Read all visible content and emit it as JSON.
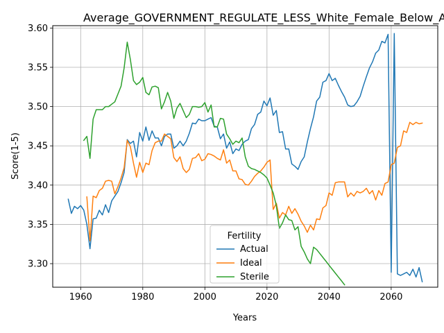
{
  "chart_data": {
    "type": "line",
    "title": "Average_GOVERNMENT_REGULATE_LESS_White_Female_Below_Average_",
    "xlabel": "Years",
    "ylabel": "Score(1-5)",
    "xlim": [
      1951,
      2075
    ],
    "ylim": [
      3.27,
      3.603
    ],
    "x_ticks": [
      1960,
      1980,
      2000,
      2020,
      2040,
      2060
    ],
    "y_ticks": [
      3.3,
      3.35,
      3.4,
      3.45,
      3.5,
      3.55,
      3.6
    ],
    "x_tick_labels": [
      "1960",
      "1980",
      "2000",
      "2020",
      "2040",
      "2060"
    ],
    "y_tick_labels": [
      "3.30",
      "3.35",
      "3.40",
      "3.45",
      "3.50",
      "3.55",
      "3.60"
    ],
    "grid": true,
    "legend": {
      "title": "Fertility",
      "placement": "lower-center"
    },
    "series": [
      {
        "name": "Actual",
        "color": "#1f77b4",
        "points": [
          [
            1956,
            3.382
          ],
          [
            1957,
            3.364
          ],
          [
            1958,
            3.373
          ],
          [
            1959,
            3.37
          ],
          [
            1960,
            3.374
          ],
          [
            1961,
            3.368
          ],
          [
            1962,
            3.35
          ],
          [
            1963,
            3.319
          ],
          [
            1964,
            3.357
          ],
          [
            1965,
            3.358
          ],
          [
            1966,
            3.368
          ],
          [
            1967,
            3.362
          ],
          [
            1968,
            3.375
          ],
          [
            1969,
            3.365
          ],
          [
            1970,
            3.38
          ],
          [
            1971,
            3.386
          ],
          [
            1972,
            3.392
          ],
          [
            1973,
            3.403
          ],
          [
            1974,
            3.416
          ],
          [
            1975,
            3.458
          ],
          [
            1976,
            3.453
          ],
          [
            1977,
            3.456
          ],
          [
            1978,
            3.436
          ],
          [
            1979,
            3.467
          ],
          [
            1980,
            3.456
          ],
          [
            1981,
            3.474
          ],
          [
            1982,
            3.457
          ],
          [
            1983,
            3.469
          ],
          [
            1984,
            3.46
          ],
          [
            1985,
            3.46
          ],
          [
            1986,
            3.45
          ],
          [
            1987,
            3.462
          ],
          [
            1988,
            3.465
          ],
          [
            1989,
            3.465
          ],
          [
            1990,
            3.447
          ],
          [
            1991,
            3.45
          ],
          [
            1992,
            3.456
          ],
          [
            1993,
            3.45
          ],
          [
            1994,
            3.456
          ],
          [
            1995,
            3.466
          ],
          [
            1996,
            3.479
          ],
          [
            1997,
            3.478
          ],
          [
            1998,
            3.484
          ],
          [
            1999,
            3.482
          ],
          [
            2000,
            3.482
          ],
          [
            2001,
            3.484
          ],
          [
            2002,
            3.486
          ],
          [
            2003,
            3.475
          ],
          [
            2004,
            3.474
          ],
          [
            2005,
            3.459
          ],
          [
            2006,
            3.465
          ],
          [
            2007,
            3.447
          ],
          [
            2008,
            3.455
          ],
          [
            2009,
            3.44
          ],
          [
            2010,
            3.446
          ],
          [
            2011,
            3.444
          ],
          [
            2012,
            3.452
          ],
          [
            2013,
            3.456
          ],
          [
            2014,
            3.458
          ],
          [
            2015,
            3.472
          ],
          [
            2016,
            3.477
          ],
          [
            2017,
            3.49
          ],
          [
            2018,
            3.493
          ],
          [
            2019,
            3.507
          ],
          [
            2020,
            3.501
          ],
          [
            2021,
            3.511
          ],
          [
            2022,
            3.489
          ],
          [
            2023,
            3.495
          ],
          [
            2024,
            3.467
          ],
          [
            2025,
            3.468
          ],
          [
            2026,
            3.446
          ],
          [
            2027,
            3.446
          ],
          [
            2028,
            3.427
          ],
          [
            2029,
            3.424
          ],
          [
            2030,
            3.42
          ],
          [
            2031,
            3.43
          ],
          [
            2032,
            3.436
          ],
          [
            2033,
            3.455
          ],
          [
            2034,
            3.472
          ],
          [
            2035,
            3.487
          ],
          [
            2036,
            3.507
          ],
          [
            2037,
            3.512
          ],
          [
            2038,
            3.531
          ],
          [
            2039,
            3.533
          ],
          [
            2040,
            3.542
          ],
          [
            2041,
            3.533
          ],
          [
            2042,
            3.536
          ],
          [
            2043,
            3.527
          ],
          [
            2044,
            3.519
          ],
          [
            2045,
            3.512
          ],
          [
            2046,
            3.502
          ],
          [
            2047,
            3.5
          ],
          [
            2048,
            3.501
          ],
          [
            2049,
            3.506
          ],
          [
            2050,
            3.513
          ],
          [
            2051,
            3.526
          ],
          [
            2052,
            3.538
          ],
          [
            2053,
            3.549
          ],
          [
            2054,
            3.557
          ],
          [
            2055,
            3.568
          ],
          [
            2056,
            3.572
          ],
          [
            2057,
            3.583
          ],
          [
            2058,
            3.581
          ],
          [
            2059,
            3.592
          ],
          [
            2060,
            3.289
          ],
          [
            2061,
            3.593
          ],
          [
            2062,
            3.287
          ],
          [
            2063,
            3.285
          ],
          [
            2064,
            3.287
          ],
          [
            2065,
            3.289
          ],
          [
            2066,
            3.285
          ],
          [
            2067,
            3.293
          ],
          [
            2068,
            3.283
          ],
          [
            2069,
            3.295
          ],
          [
            2070,
            3.277
          ]
        ]
      },
      {
        "name": "Ideal",
        "color": "#ff7f0e",
        "points": [
          [
            1962,
            3.385
          ],
          [
            1963,
            3.329
          ],
          [
            1964,
            3.386
          ],
          [
            1965,
            3.384
          ],
          [
            1966,
            3.393
          ],
          [
            1967,
            3.396
          ],
          [
            1968,
            3.405
          ],
          [
            1969,
            3.406
          ],
          [
            1970,
            3.405
          ],
          [
            1971,
            3.389
          ],
          [
            1972,
            3.398
          ],
          [
            1973,
            3.409
          ],
          [
            1974,
            3.422
          ],
          [
            1975,
            3.457
          ],
          [
            1976,
            3.449
          ],
          [
            1977,
            3.428
          ],
          [
            1978,
            3.41
          ],
          [
            1979,
            3.429
          ],
          [
            1980,
            3.416
          ],
          [
            1981,
            3.428
          ],
          [
            1982,
            3.426
          ],
          [
            1983,
            3.444
          ],
          [
            1984,
            3.454
          ],
          [
            1985,
            3.456
          ],
          [
            1986,
            3.456
          ],
          [
            1987,
            3.465
          ],
          [
            1988,
            3.462
          ],
          [
            1989,
            3.459
          ],
          [
            1990,
            3.435
          ],
          [
            1991,
            3.43
          ],
          [
            1992,
            3.436
          ],
          [
            1993,
            3.421
          ],
          [
            1994,
            3.416
          ],
          [
            1995,
            3.42
          ],
          [
            1996,
            3.434
          ],
          [
            1997,
            3.435
          ],
          [
            1998,
            3.44
          ],
          [
            1999,
            3.431
          ],
          [
            2000,
            3.433
          ],
          [
            2001,
            3.44
          ],
          [
            2002,
            3.439
          ],
          [
            2003,
            3.437
          ],
          [
            2004,
            3.434
          ],
          [
            2005,
            3.432
          ],
          [
            2006,
            3.445
          ],
          [
            2007,
            3.428
          ],
          [
            2008,
            3.432
          ],
          [
            2009,
            3.418
          ],
          [
            2010,
            3.418
          ],
          [
            2011,
            3.408
          ],
          [
            2012,
            3.407
          ],
          [
            2013,
            3.401
          ],
          [
            2014,
            3.4
          ],
          [
            2015,
            3.405
          ],
          [
            2016,
            3.411
          ],
          [
            2017,
            3.415
          ],
          [
            2018,
            3.418
          ],
          [
            2019,
            3.423
          ],
          [
            2020,
            3.429
          ],
          [
            2021,
            3.432
          ],
          [
            2022,
            3.369
          ],
          [
            2023,
            3.377
          ],
          [
            2024,
            3.358
          ],
          [
            2025,
            3.365
          ],
          [
            2026,
            3.362
          ],
          [
            2027,
            3.373
          ],
          [
            2028,
            3.364
          ],
          [
            2029,
            3.37
          ],
          [
            2030,
            3.363
          ],
          [
            2031,
            3.354
          ],
          [
            2032,
            3.348
          ],
          [
            2033,
            3.34
          ],
          [
            2034,
            3.349
          ],
          [
            2035,
            3.343
          ],
          [
            2036,
            3.357
          ],
          [
            2037,
            3.356
          ],
          [
            2038,
            3.371
          ],
          [
            2039,
            3.374
          ],
          [
            2040,
            3.39
          ],
          [
            2041,
            3.387
          ],
          [
            2042,
            3.403
          ],
          [
            2043,
            3.404
          ],
          [
            2044,
            3.404
          ],
          [
            2045,
            3.404
          ],
          [
            2046,
            3.385
          ],
          [
            2047,
            3.39
          ],
          [
            2048,
            3.386
          ],
          [
            2049,
            3.392
          ],
          [
            2050,
            3.39
          ],
          [
            2051,
            3.392
          ],
          [
            2052,
            3.396
          ],
          [
            2053,
            3.389
          ],
          [
            2054,
            3.393
          ],
          [
            2055,
            3.381
          ],
          [
            2056,
            3.393
          ],
          [
            2057,
            3.387
          ],
          [
            2058,
            3.402
          ],
          [
            2059,
            3.404
          ],
          [
            2060,
            3.426
          ],
          [
            2061,
            3.428
          ],
          [
            2062,
            3.448
          ],
          [
            2063,
            3.45
          ],
          [
            2064,
            3.469
          ],
          [
            2065,
            3.467
          ],
          [
            2066,
            3.48
          ],
          [
            2067,
            3.477
          ],
          [
            2068,
            3.48
          ],
          [
            2069,
            3.478
          ],
          [
            2070,
            3.479
          ]
        ]
      },
      {
        "name": "Sterile",
        "color": "#2ca02c",
        "points": [
          [
            1961,
            3.457
          ],
          [
            1962,
            3.462
          ],
          [
            1963,
            3.434
          ],
          [
            1964,
            3.484
          ],
          [
            1965,
            3.496
          ],
          [
            1966,
            3.496
          ],
          [
            1967,
            3.496
          ],
          [
            1968,
            3.5
          ],
          [
            1969,
            3.5
          ],
          [
            1970,
            3.503
          ],
          [
            1971,
            3.506
          ],
          [
            1972,
            3.516
          ],
          [
            1973,
            3.526
          ],
          [
            1974,
            3.549
          ],
          [
            1975,
            3.582
          ],
          [
            1976,
            3.56
          ],
          [
            1977,
            3.533
          ],
          [
            1978,
            3.528
          ],
          [
            1979,
            3.531
          ],
          [
            1980,
            3.537
          ],
          [
            1981,
            3.518
          ],
          [
            1982,
            3.515
          ],
          [
            1983,
            3.525
          ],
          [
            1984,
            3.526
          ],
          [
            1985,
            3.524
          ],
          [
            1986,
            3.497
          ],
          [
            1987,
            3.506
          ],
          [
            1988,
            3.518
          ],
          [
            1989,
            3.507
          ],
          [
            1990,
            3.485
          ],
          [
            1991,
            3.498
          ],
          [
            1992,
            3.504
          ],
          [
            1993,
            3.495
          ],
          [
            1994,
            3.486
          ],
          [
            1995,
            3.49
          ],
          [
            1996,
            3.5
          ],
          [
            1997,
            3.5
          ],
          [
            1998,
            3.499
          ],
          [
            1999,
            3.5
          ],
          [
            2000,
            3.505
          ],
          [
            2001,
            3.493
          ],
          [
            2002,
            3.502
          ],
          [
            2003,
            3.474
          ],
          [
            2004,
            3.474
          ],
          [
            2005,
            3.485
          ],
          [
            2006,
            3.484
          ],
          [
            2007,
            3.465
          ],
          [
            2008,
            3.459
          ],
          [
            2009,
            3.452
          ],
          [
            2010,
            3.456
          ],
          [
            2011,
            3.454
          ],
          [
            2012,
            3.46
          ],
          [
            2013,
            3.436
          ],
          [
            2014,
            3.424
          ],
          [
            2015,
            3.421
          ],
          [
            2016,
            3.42
          ],
          [
            2017,
            3.418
          ],
          [
            2018,
            3.416
          ],
          [
            2019,
            3.413
          ],
          [
            2020,
            3.409
          ],
          [
            2021,
            3.4
          ],
          [
            2022,
            3.39
          ],
          [
            2023,
            3.374
          ],
          [
            2024,
            3.345
          ],
          [
            2025,
            3.352
          ],
          [
            2026,
            3.362
          ],
          [
            2027,
            3.356
          ],
          [
            2028,
            3.355
          ],
          [
            2029,
            3.343
          ],
          [
            2030,
            3.347
          ],
          [
            2031,
            3.322
          ],
          [
            2032,
            3.315
          ],
          [
            2033,
            3.306
          ],
          [
            2034,
            3.3
          ],
          [
            2035,
            3.321
          ],
          [
            2036,
            3.318
          ],
          [
            2037,
            3.313
          ],
          [
            2038,
            3.308
          ],
          [
            2039,
            3.303
          ],
          [
            2040,
            3.298
          ],
          [
            2041,
            3.293
          ],
          [
            2042,
            3.288
          ],
          [
            2043,
            3.283
          ],
          [
            2044,
            3.278
          ],
          [
            2045,
            3.273
          ]
        ]
      }
    ]
  }
}
